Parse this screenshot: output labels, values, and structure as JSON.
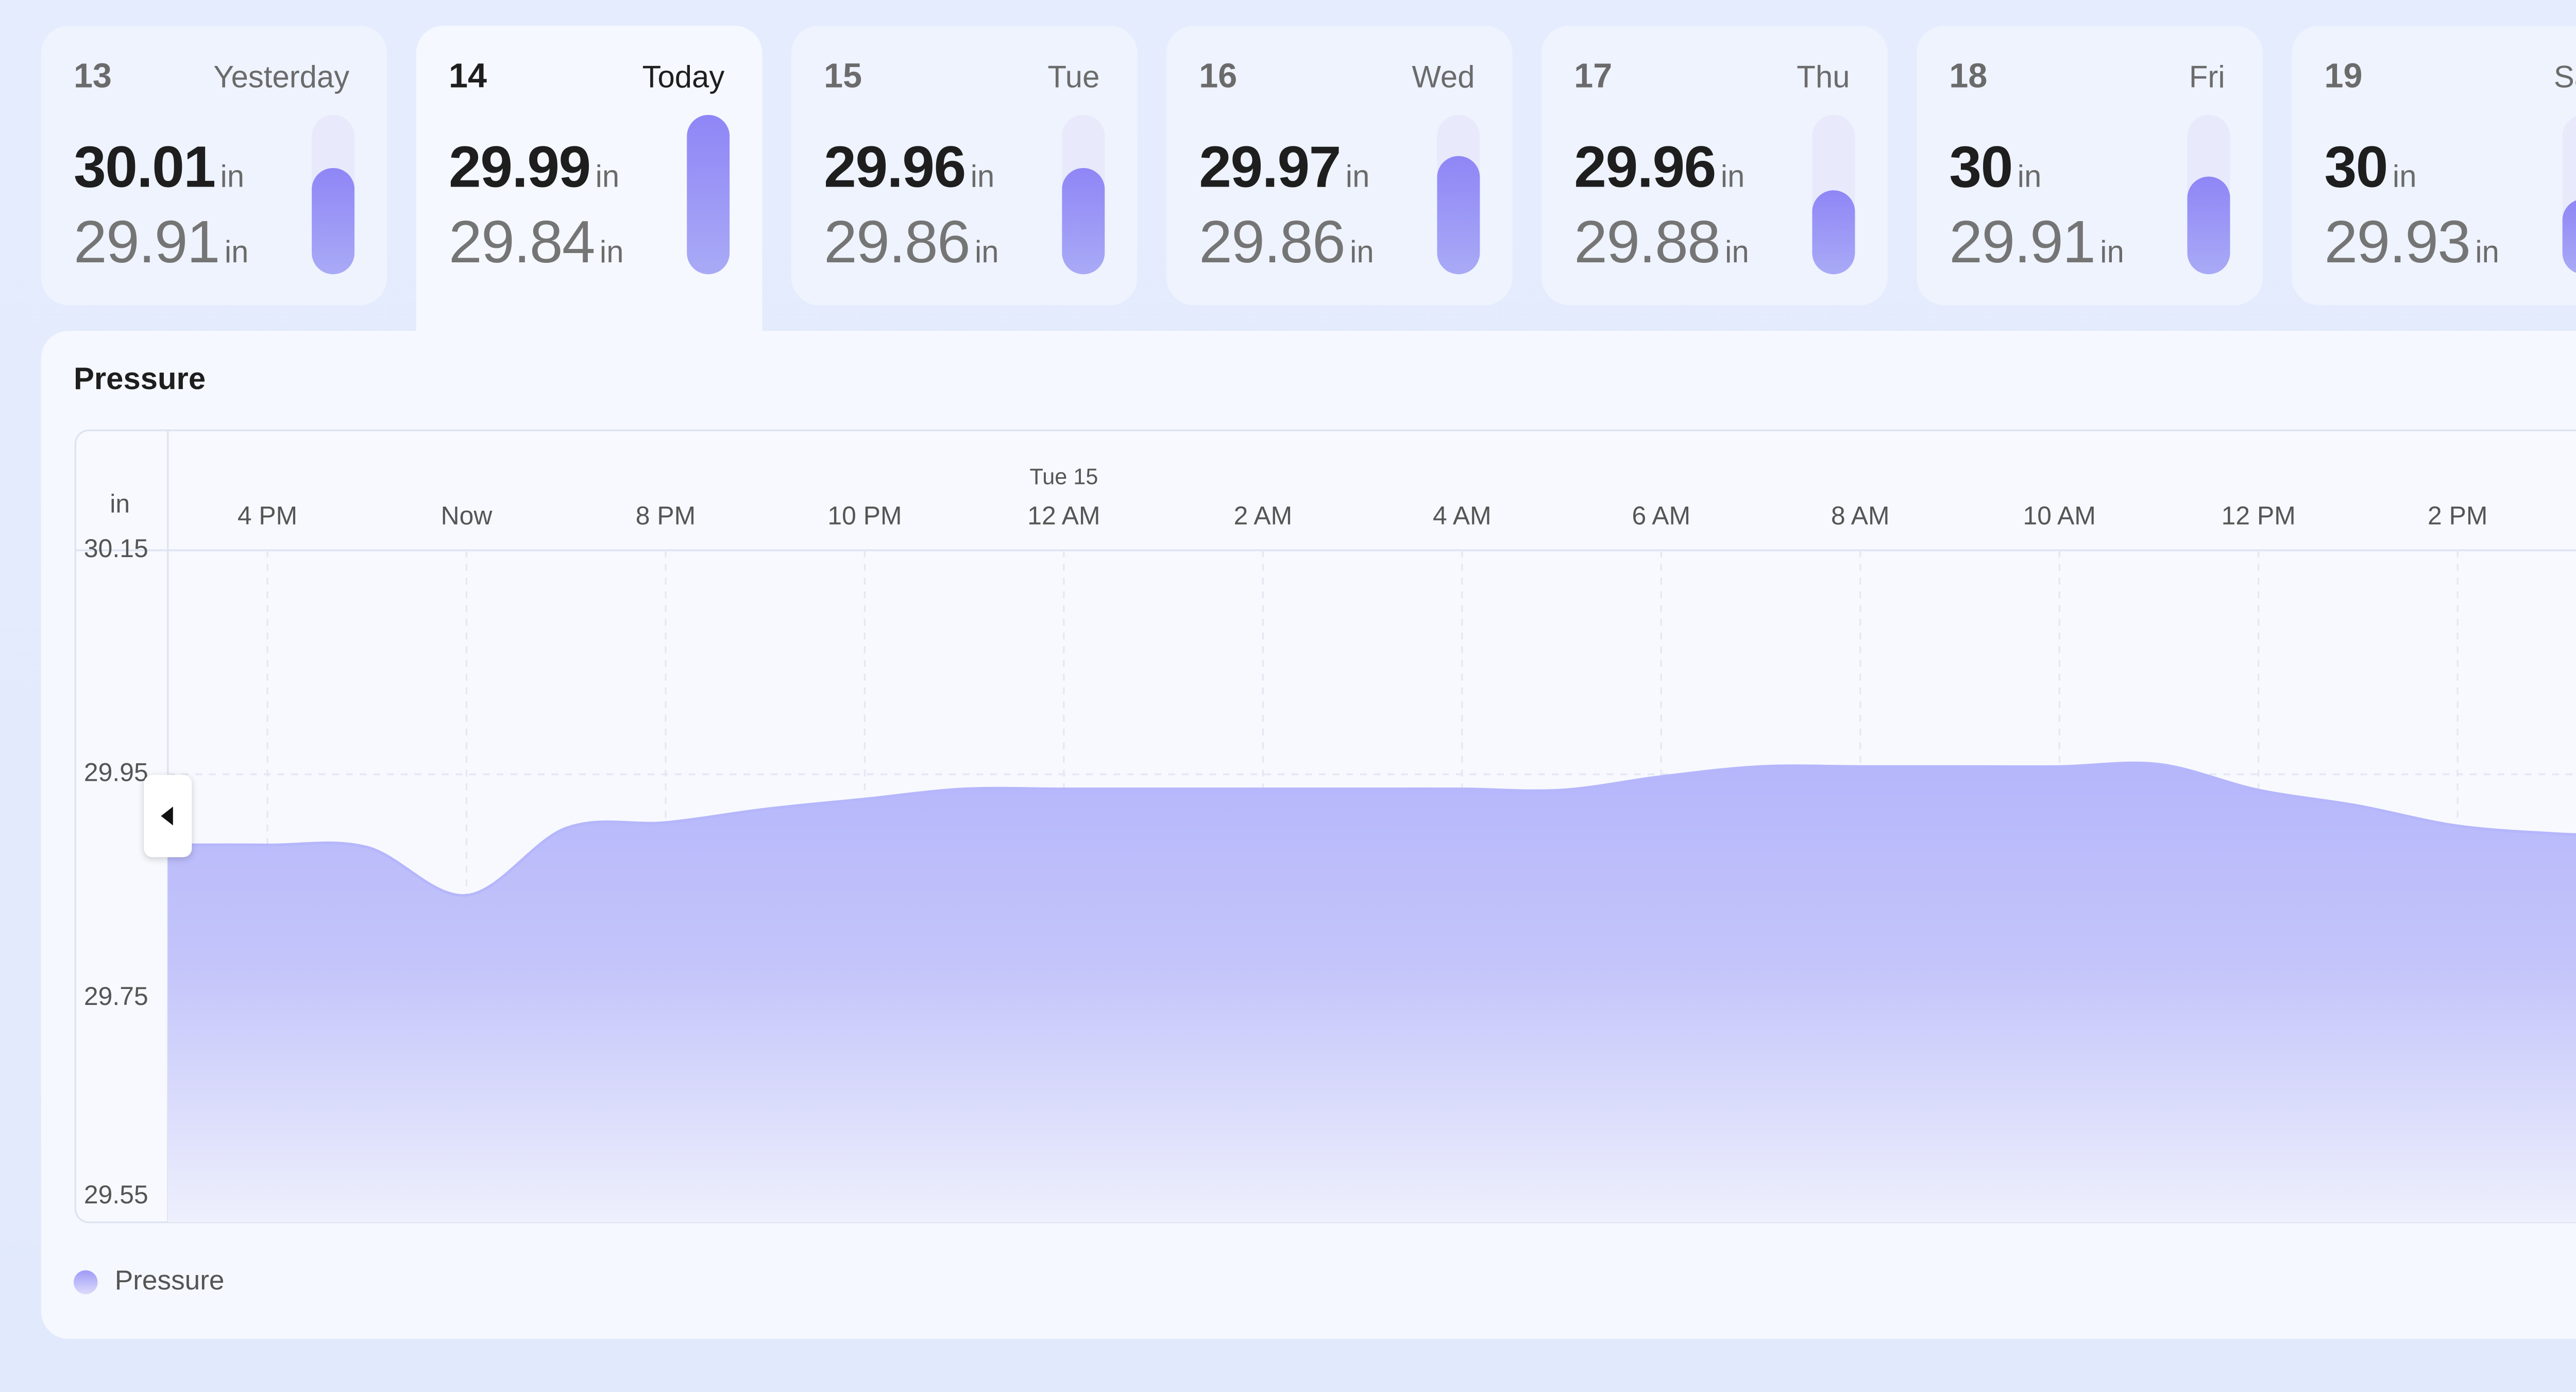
{
  "unit": "in",
  "days": [
    {
      "day": "13",
      "label": "Yesterday",
      "high": 30.01,
      "low": 29.91,
      "level": 0.67
    },
    {
      "day": "14",
      "label": "Today",
      "high": 29.99,
      "low": 29.84,
      "level": 1.0
    },
    {
      "day": "15",
      "label": "Tue",
      "high": 29.96,
      "low": 29.86,
      "level": 0.67
    },
    {
      "day": "16",
      "label": "Wed",
      "high": 29.97,
      "low": 29.86,
      "level": 0.74
    },
    {
      "day": "17",
      "label": "Thu",
      "high": 29.96,
      "low": 29.88,
      "level": 0.53
    },
    {
      "day": "18",
      "label": "Fri",
      "high": 30,
      "low": 29.91,
      "level": 0.61
    },
    {
      "day": "19",
      "label": "Sat",
      "high": 30,
      "low": 29.93,
      "level": 0.47
    }
  ],
  "selected_day": 1,
  "chart_data": {
    "type": "area",
    "title": "Pressure",
    "y_label": "in",
    "x": [
      0,
      1,
      2,
      3,
      4,
      5,
      6,
      7,
      8,
      9,
      10,
      11,
      12,
      13,
      14,
      15,
      16,
      17,
      18,
      19,
      20,
      21,
      22,
      23,
      24,
      24.5
    ],
    "series": [
      {
        "name": "Pressure",
        "color": "#b5b6fb",
        "values": [
          29.887,
          29.887,
          29.885,
          29.842,
          29.902,
          29.907,
          29.919,
          29.928,
          29.937,
          29.937,
          29.937,
          29.937,
          29.937,
          29.937,
          29.936,
          29.948,
          29.957,
          29.957,
          29.957,
          29.957,
          29.959,
          29.936,
          29.922,
          29.904,
          29.897,
          29.896
        ]
      }
    ],
    "xlim": [
      0,
      24.5
    ],
    "xticks": [
      {
        "value": 1,
        "label": "4 PM"
      },
      {
        "value": 3,
        "label": "Now"
      },
      {
        "value": 5,
        "label": "8 PM"
      },
      {
        "value": 7,
        "label": "10 PM"
      },
      {
        "value": 9,
        "label": "12 AM"
      },
      {
        "value": 11,
        "label": "2 AM"
      },
      {
        "value": 13,
        "label": "4 AM"
      },
      {
        "value": 15,
        "label": "6 AM"
      },
      {
        "value": 17,
        "label": "8 AM"
      },
      {
        "value": 19,
        "label": "10 AM"
      },
      {
        "value": 21,
        "label": "12 PM"
      },
      {
        "value": 23,
        "label": "2 PM"
      }
    ],
    "date_marker": {
      "x": 9,
      "label": "Tue 15"
    },
    "ylim": [
      29.55,
      30.15
    ],
    "yticks": [
      29.55,
      29.75,
      29.95,
      30.15
    ],
    "grid": true
  }
}
